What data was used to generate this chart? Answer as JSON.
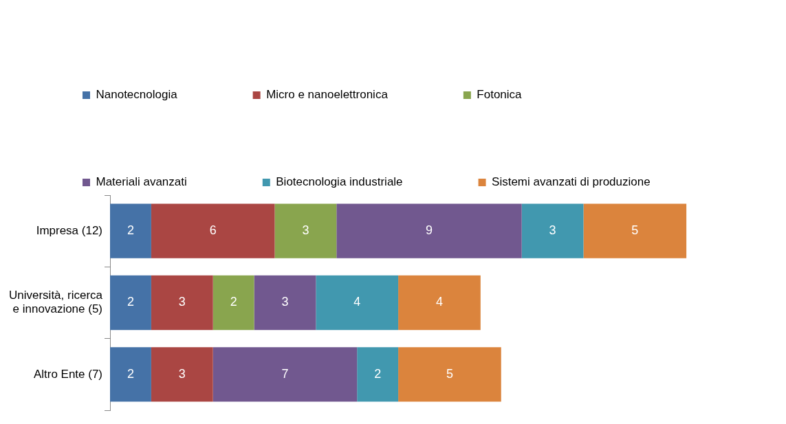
{
  "chart_data": {
    "type": "bar",
    "orientation": "horizontal",
    "stacked": true,
    "data_labels": true,
    "legend": "top",
    "grid": false,
    "tick_labels": "y",
    "categories": [
      "Impresa (12)",
      "Università, ricerca e innovazione (5)",
      "Altro Ente (7)"
    ],
    "series": [
      {
        "name": "Nanotecnologia",
        "color": "#4572a7",
        "values": [
          2,
          2,
          2
        ]
      },
      {
        "name": "Micro e nanoelettronica",
        "color": "#aa4643",
        "values": [
          6,
          3,
          3
        ]
      },
      {
        "name": "Fotonica",
        "color": "#89a54e",
        "values": [
          3,
          2,
          null
        ]
      },
      {
        "name": "Materiali avanzati",
        "color": "#71588f",
        "values": [
          9,
          3,
          7
        ]
      },
      {
        "name": "Biotecnologia industriale",
        "color": "#4198af",
        "values": [
          3,
          4,
          2
        ]
      },
      {
        "name": "Sistemi avanzati di produzione",
        "color": "#db843d",
        "values": [
          5,
          4,
          5
        ]
      }
    ]
  }
}
